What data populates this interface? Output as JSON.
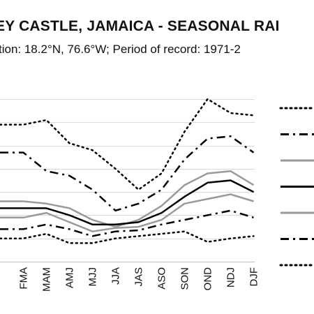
{
  "chart_data": {
    "type": "line",
    "title": "MORANT BAY / BELVEDEREY CASTLE, JAMAICA - SEASONAL RAINFALL",
    "title_visible": "EY CASTLE, JAMAICA - SEASONAL RAI",
    "subtitle_visible": "tion: 18.2°N, 76.6°W; Period of record: 1971-2",
    "categories": [
      "FMA",
      "MAM",
      "AMJ",
      "MJJ",
      "JJA",
      "JAS",
      "ASO",
      "SON",
      "OND",
      "NDJ",
      "DJF"
    ],
    "visible_category_labels": [
      "FMA",
      "MAM",
      "AMJ",
      "MJJ",
      "JJA",
      "JAS",
      "ASO",
      "SON",
      "OND",
      "NDJ",
      "DJF"
    ],
    "xlabel": "",
    "ylabel": "",
    "ylim": [
      0,
      700
    ],
    "grid": true,
    "legend_position": "right",
    "colors": {
      "black": "#000000",
      "gray": "#9a9a9a",
      "grid": "#d9d9d9"
    },
    "series": [
      {
        "style": "dotted",
        "color": "#000000",
        "values": [
          590,
          610,
          510,
          480,
          400,
          310,
          380,
          560,
          700,
          640,
          630
        ]
      },
      {
        "style": "dashdot",
        "color": "#000000",
        "values": [
          470,
          390,
          370,
          310,
          220,
          250,
          310,
          440,
          530,
          540,
          470
        ]
      },
      {
        "style": "solid",
        "color": "#9a9a9a",
        "values": [
          260,
          250,
          230,
          180,
          150,
          180,
          240,
          330,
          380,
          390,
          330
        ]
      },
      {
        "style": "solid",
        "color": "#000000",
        "values": [
          230,
          230,
          200,
          160,
          160,
          170,
          210,
          280,
          340,
          350,
          300
        ]
      },
      {
        "style": "solid",
        "color": "#9a9a9a",
        "values": [
          190,
          210,
          170,
          130,
          145,
          150,
          180,
          250,
          270,
          290,
          260
        ]
      },
      {
        "style": "dashdot",
        "color": "#000000",
        "values": [
          140,
          160,
          140,
          110,
          130,
          135,
          160,
          180,
          200,
          220,
          190
        ]
      },
      {
        "style": "dotted",
        "color": "#000000",
        "values": [
          100,
          120,
          80,
          80,
          100,
          110,
          120,
          130,
          85,
          100,
          110
        ]
      }
    ]
  }
}
